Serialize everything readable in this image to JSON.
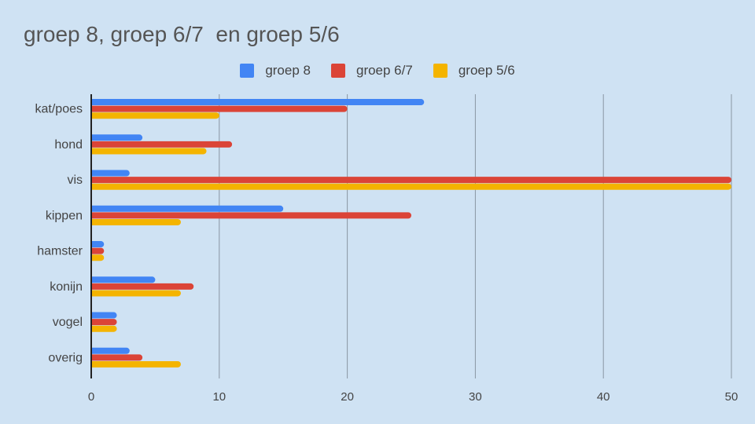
{
  "chart_data": {
    "type": "bar",
    "orientation": "horizontal",
    "title": "groep 8, groep 6/7  en groep 5/6",
    "categories": [
      "kat/poes",
      "hond",
      "vis",
      "kippen",
      "hamster",
      "konijn",
      "vogel",
      "overig"
    ],
    "series": [
      {
        "name": "groep 8",
        "color": "#4285f4",
        "values": [
          26,
          4,
          3,
          15,
          1,
          5,
          2,
          3
        ]
      },
      {
        "name": "groep 6/7",
        "color": "#db4437",
        "values": [
          20,
          11,
          50,
          25,
          1,
          8,
          2,
          4
        ]
      },
      {
        "name": "groep 5/6",
        "color": "#f4b400",
        "values": [
          10,
          9,
          50,
          7,
          1,
          7,
          2,
          7
        ]
      }
    ],
    "xlim": [
      0,
      50
    ],
    "xticks": [
      "0",
      "10",
      "20",
      "30",
      "40",
      "50"
    ],
    "grid": true,
    "legend": "top",
    "xlabel": "",
    "ylabel": ""
  }
}
